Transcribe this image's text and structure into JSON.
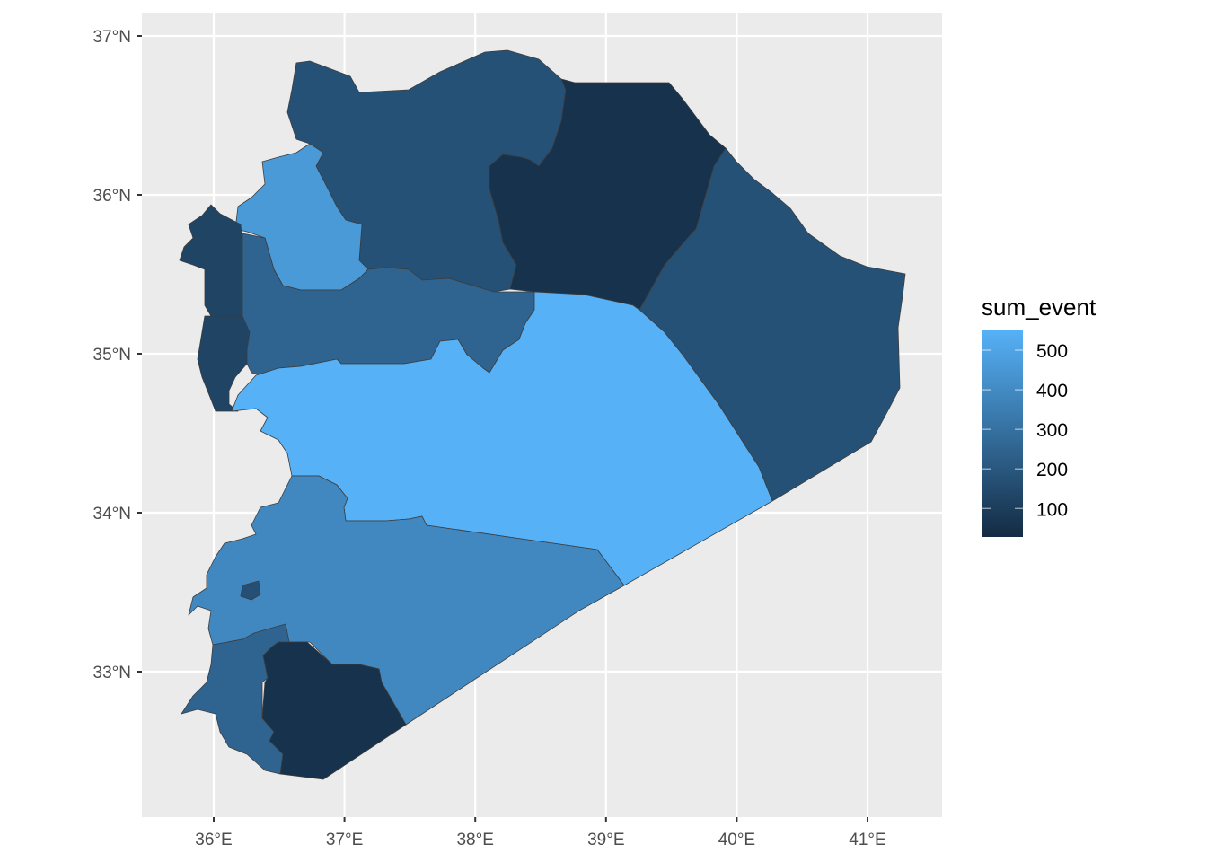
{
  "chart_data": {
    "type": "choropleth",
    "title": "",
    "xlabel": "",
    "ylabel": "",
    "x_ticks": [
      {
        "value": 36,
        "label": "36°E"
      },
      {
        "value": 37,
        "label": "37°E"
      },
      {
        "value": 38,
        "label": "38°E"
      },
      {
        "value": 39,
        "label": "39°E"
      },
      {
        "value": 40,
        "label": "40°E"
      },
      {
        "value": 41,
        "label": "41°E"
      }
    ],
    "y_ticks": [
      {
        "value": 37,
        "label": "37°N"
      },
      {
        "value": 36,
        "label": "36°N"
      },
      {
        "value": 35,
        "label": "35°N"
      },
      {
        "value": 34,
        "label": "34°N"
      },
      {
        "value": 33,
        "label": "33°N"
      }
    ],
    "xlim": [
      35.5,
      41.6
    ],
    "ylim": [
      32.1,
      37.15
    ],
    "grid": true,
    "legend": {
      "title": "sum_event",
      "placement": "right",
      "breaks": [
        500,
        400,
        300,
        200,
        100
      ],
      "range": [
        28,
        550
      ],
      "low_color": "#132B43",
      "high_color": "#56B1F7"
    },
    "regions": [
      {
        "id": "aleppo",
        "value": 175
      },
      {
        "id": "idlib",
        "value": 460
      },
      {
        "id": "latakia",
        "value": 125
      },
      {
        "id": "tartus",
        "value": 125
      },
      {
        "id": "hama",
        "value": 250
      },
      {
        "id": "raqqa",
        "value": 55
      },
      {
        "id": "hasakah",
        "value": 175
      },
      {
        "id": "homs",
        "value": 550
      },
      {
        "id": "rural-damascus",
        "value": 390
      },
      {
        "id": "sweida",
        "value": 55
      },
      {
        "id": "daraa",
        "value": 250
      },
      {
        "id": "damascus",
        "value": 170
      }
    ]
  }
}
